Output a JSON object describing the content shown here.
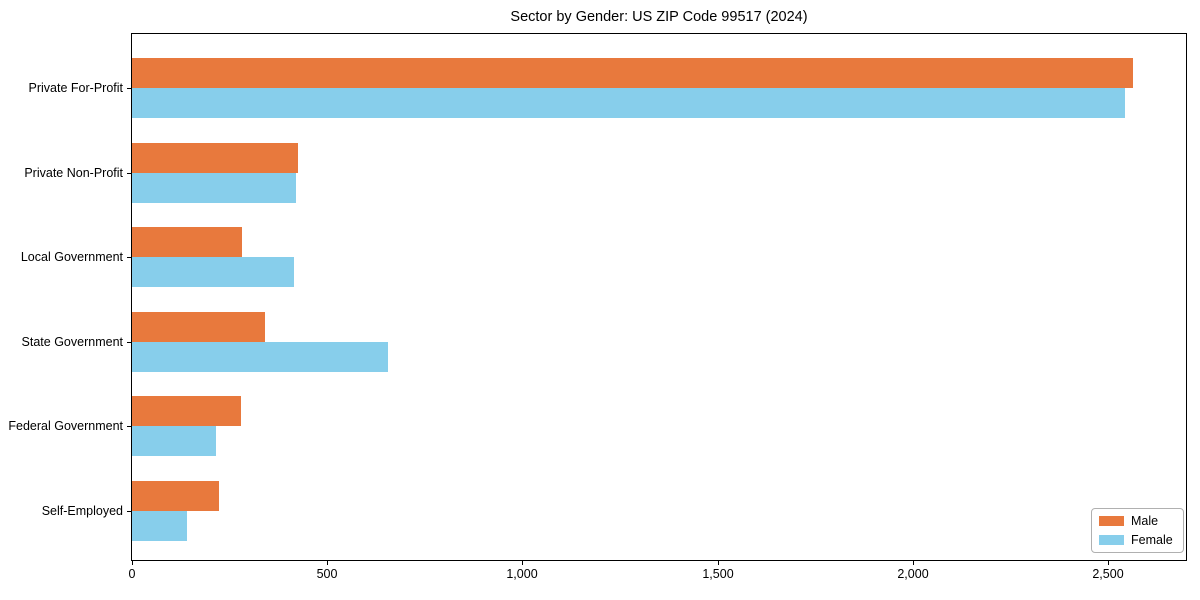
{
  "chart_data": {
    "type": "bar",
    "orientation": "horizontal",
    "title": "Sector by Gender: US ZIP Code 99517 (2024)",
    "categories": [
      "Private For-Profit",
      "Private Non-Profit",
      "Local Government",
      "State Government",
      "Federal Government",
      "Self-Employed"
    ],
    "series": [
      {
        "name": "Male",
        "color": "#e8793d",
        "values": [
          2565,
          425,
          283,
          340,
          278,
          222
        ]
      },
      {
        "name": "Female",
        "color": "#87ceeb",
        "values": [
          2543,
          421,
          414,
          655,
          214,
          140
        ]
      }
    ],
    "xlabel": "",
    "ylabel": "",
    "xlim": [
      0,
      2700
    ],
    "xticks": [
      0,
      500,
      1000,
      1500,
      2000,
      2500
    ],
    "xtick_labels": [
      "0",
      "500",
      "1,000",
      "1,500",
      "2,000",
      "2,500"
    ],
    "grid": false,
    "legend_position": "lower-right",
    "axis_color": "#000000",
    "text_color": "#000000",
    "background_color": "#ffffff"
  }
}
